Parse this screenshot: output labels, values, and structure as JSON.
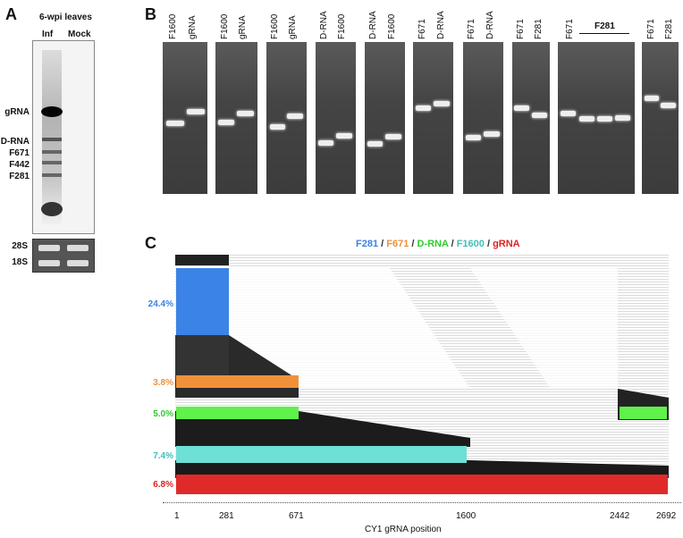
{
  "panelA": {
    "letter": "A",
    "title": "6-wpi leaves",
    "lanes": [
      "Inf",
      "Mock"
    ],
    "labels": [
      "gRNA",
      "D-RNA",
      "F671",
      "F442",
      "F281"
    ],
    "rrna": [
      "28S",
      "18S"
    ]
  },
  "panelB": {
    "letter": "B",
    "gels": [
      {
        "lanes": [
          "F1600",
          "gRNA"
        ]
      },
      {
        "lanes": [
          "F1600",
          "gRNA"
        ]
      },
      {
        "lanes": [
          "F1600",
          "gRNA"
        ]
      },
      {
        "lanes": [
          "D-RNA",
          "F1600"
        ]
      },
      {
        "lanes": [
          "D-RNA",
          "F1600"
        ]
      },
      {
        "lanes": [
          "F671",
          "D-RNA"
        ]
      },
      {
        "lanes": [
          "F671",
          "D-RNA"
        ]
      },
      {
        "lanes": [
          "F671",
          "F281"
        ]
      },
      {
        "lanes": [
          "F671"
        ],
        "group": "F281"
      },
      {
        "lanes": [
          "F671",
          "F281"
        ]
      }
    ]
  },
  "panelC": {
    "letter": "C",
    "legend": [
      {
        "text": "F281",
        "color": "#3b83e6"
      },
      {
        "text": " / ",
        "color": "#333333"
      },
      {
        "text": "F671",
        "color": "#f0913a"
      },
      {
        "text": " / ",
        "color": "#333333"
      },
      {
        "text": "D-RNA",
        "color": "#2ecc2e"
      },
      {
        "text": " / ",
        "color": "#333333"
      },
      {
        "text": "F1600",
        "color": "#3fbfb6"
      },
      {
        "text": " / ",
        "color": "#333333"
      },
      {
        "text": "gRNA",
        "color": "#e02020"
      }
    ],
    "percentages": [
      {
        "text": "24.4%",
        "color": "#3b83e6"
      },
      {
        "text": "3.8%",
        "color": "#f0913a"
      },
      {
        "text": "5.0%",
        "color": "#2ecc2e"
      },
      {
        "text": "7.4%",
        "color": "#3fbfb6"
      },
      {
        "text": "6.8%",
        "color": "#e02020"
      }
    ],
    "axis_ticks": [
      "1",
      "281",
      "671",
      "1600",
      "2442",
      "2692"
    ],
    "axis_label": "CY1 gRNA position"
  }
}
